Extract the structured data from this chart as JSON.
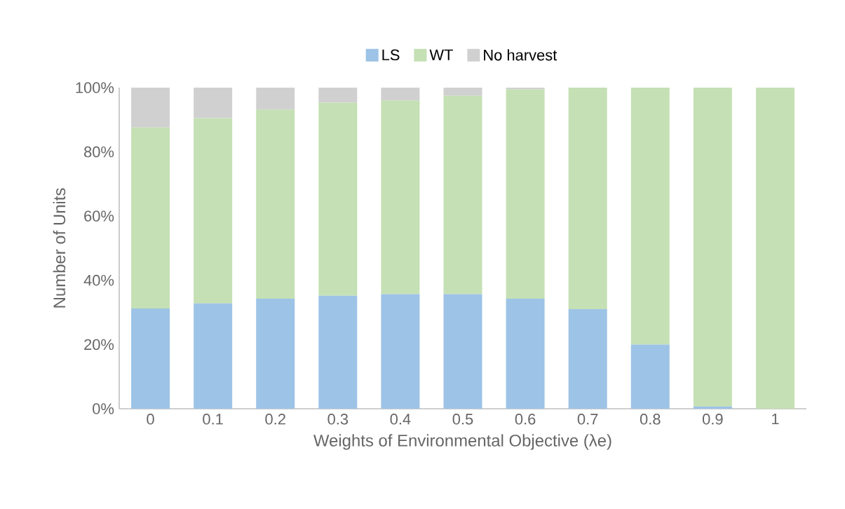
{
  "chart_data": {
    "type": "bar",
    "stacked": true,
    "xlabel": "Weights of Environmental Objective (λe)",
    "ylabel": "Number of Units",
    "categories": [
      "0",
      "0.1",
      "0.2",
      "0.3",
      "0.4",
      "0.5",
      "0.6",
      "0.7",
      "0.8",
      "0.9",
      "1"
    ],
    "series": [
      {
        "name": "LS",
        "color": "#9dc3e6",
        "values": [
          31.2,
          32.8,
          34.3,
          35.2,
          35.7,
          35.7,
          34.3,
          31.0,
          20.0,
          0.7,
          0
        ]
      },
      {
        "name": "WT",
        "color": "#c5e0b4",
        "values": [
          56.4,
          57.7,
          58.9,
          60.1,
          60.3,
          61.8,
          65.2,
          69.0,
          80.0,
          99.3,
          100
        ]
      },
      {
        "name": "No harvest",
        "color": "#d0d0d0",
        "values": [
          12.4,
          9.5,
          6.8,
          4.7,
          4.0,
          2.5,
          0.5,
          0,
          0,
          0,
          0
        ]
      }
    ],
    "ylim": [
      0,
      100
    ],
    "yticks": [
      {
        "value": 0,
        "label": "0%"
      },
      {
        "value": 20,
        "label": "20%"
      },
      {
        "value": 40,
        "label": "40%"
      },
      {
        "value": 60,
        "label": "60%"
      },
      {
        "value": 80,
        "label": "80%"
      },
      {
        "value": 100,
        "label": "100%"
      }
    ],
    "legend": "top",
    "grid": false
  }
}
